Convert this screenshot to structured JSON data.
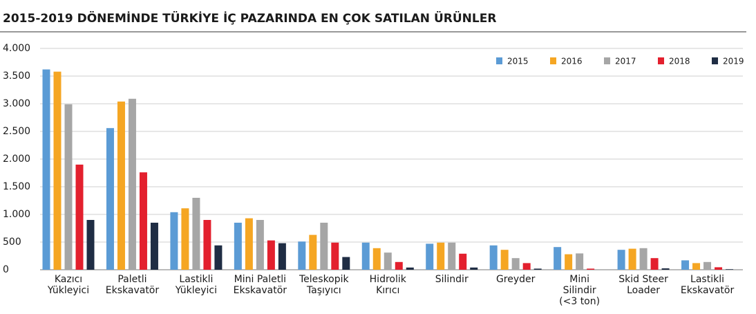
{
  "chart_data": {
    "type": "bar",
    "title": "2015-2019 DÖNEMİNDE TÜRKİYE İÇ PAZARINDA EN ÇOK SATILAN ÜRÜNLER",
    "categories": [
      "Kazıcı\nYükleyici",
      "Paletli\nEkskavatör",
      "Lastikli\nYükleyici",
      "Mini Paletli\nEkskavatör",
      "Teleskopik\nTaşıyıcı",
      "Hidrolik\nKırıcı",
      "Silindir",
      "Greyder",
      "Mini\nSilindir\n(<3 ton)",
      "Skid Steer\nLoader",
      "Lastikli\nEkskavatör"
    ],
    "series": [
      {
        "name": "2015",
        "color": "#5b9bd5",
        "values": [
          3620,
          2560,
          1040,
          850,
          510,
          490,
          470,
          440,
          410,
          360,
          170
        ]
      },
      {
        "name": "2016",
        "color": "#f5a623",
        "values": [
          3580,
          3040,
          1110,
          930,
          630,
          390,
          490,
          360,
          280,
          380,
          120
        ]
      },
      {
        "name": "2017",
        "color": "#a6a6a6",
        "values": [
          2990,
          3090,
          1300,
          900,
          850,
          310,
          490,
          210,
          295,
          390,
          140
        ]
      },
      {
        "name": "2018",
        "color": "#e3202e",
        "values": [
          1900,
          1760,
          900,
          530,
          490,
          140,
          290,
          120,
          20,
          210,
          45
        ]
      },
      {
        "name": "2019",
        "color": "#1f2d44",
        "values": [
          900,
          850,
          440,
          480,
          230,
          40,
          40,
          20,
          0,
          25,
          10
        ]
      }
    ],
    "ylim": [
      0,
      4000
    ],
    "yticks": [
      0,
      500,
      {
        "value": 1000,
        "label": "1.000"
      },
      {
        "value": 1500,
        "label": "1.500"
      },
      {
        "value": 2000,
        "label": "2.000"
      },
      {
        "value": 2500,
        "label": "2.500"
      },
      {
        "value": 3000,
        "label": "3.000"
      },
      {
        "value": 3500,
        "label": "3.500"
      },
      {
        "value": 4000,
        "label": "4.000"
      }
    ],
    "grid": true,
    "legend": "top-right"
  }
}
